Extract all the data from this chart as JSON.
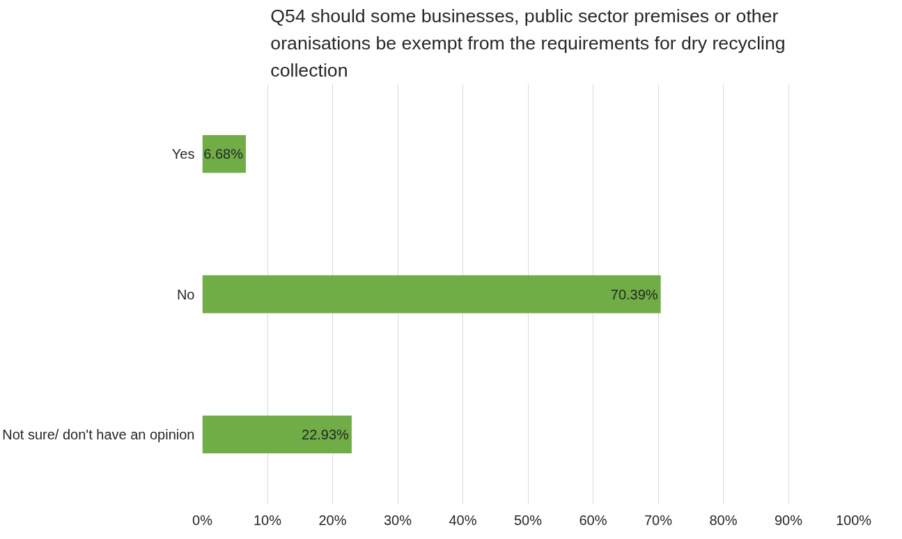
{
  "chart_data": {
    "type": "bar",
    "orientation": "horizontal",
    "title": "Q54 should some businesses, public sector premises or other oranisations be exempt from the requirements for dry recycling collection",
    "categories": [
      "Yes",
      "No",
      "Not sure/ don't have an opinion"
    ],
    "values": [
      6.68,
      70.39,
      22.93
    ],
    "value_labels": [
      "6.68%",
      "70.39%",
      "22.93%"
    ],
    "color": "#70ad47",
    "xlim": [
      0,
      100
    ],
    "xticks": [
      {
        "value": 0,
        "label": "0%"
      },
      {
        "value": 10,
        "label": "10%"
      },
      {
        "value": 20,
        "label": "20%"
      },
      {
        "value": 30,
        "label": "30%"
      },
      {
        "value": 40,
        "label": "40%"
      },
      {
        "value": 50,
        "label": "50%"
      },
      {
        "value": 60,
        "label": "60%"
      },
      {
        "value": 70,
        "label": "70%"
      },
      {
        "value": 80,
        "label": "80%"
      },
      {
        "value": 90,
        "label": "90%"
      },
      {
        "value": 100,
        "label": "100%"
      }
    ],
    "grid": "x"
  }
}
